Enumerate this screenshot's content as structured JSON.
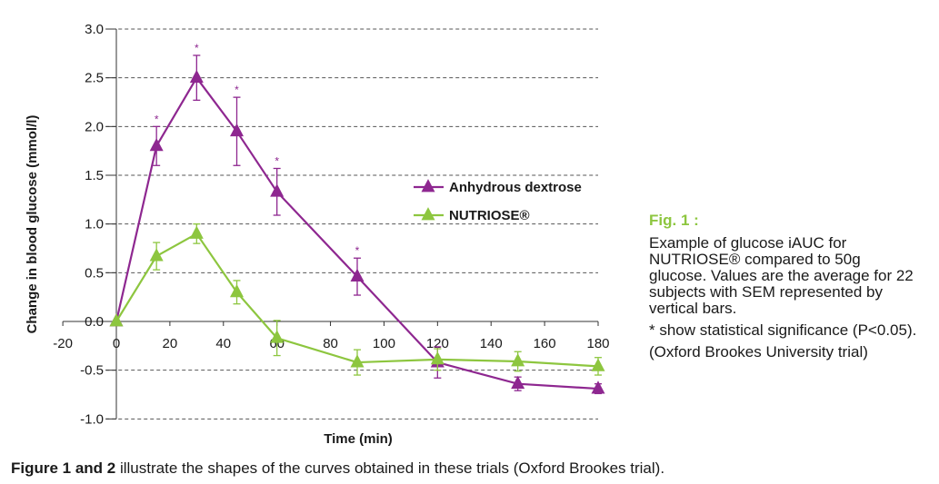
{
  "colors": {
    "dextrose": "#8e2790",
    "nutriose": "#8dc63f",
    "fig_title": "#8dc63f",
    "grid": "#555555"
  },
  "chart_data": {
    "type": "line",
    "xlabel": "Time (min)",
    "ylabel": "Change in blood glucose (mmol/l)",
    "xlim": [
      -20,
      180
    ],
    "ylim": [
      -1.0,
      3.0
    ],
    "x_ticks": [
      "-20",
      "0",
      "20",
      "40",
      "60",
      "80",
      "100",
      "120",
      "140",
      "160",
      "180"
    ],
    "y_ticks": [
      "3.0",
      "2.5",
      "2.0",
      "1.5",
      "1.0",
      "0.5",
      "0.0",
      "-0.5",
      "-1.0"
    ],
    "grid": true,
    "legend_position": "center-right",
    "series": [
      {
        "name": "Anhydrous dextrose",
        "color": "#8e2790",
        "marker": "triangle",
        "x": [
          0,
          15,
          30,
          45,
          60,
          90,
          120,
          150,
          180
        ],
        "y": [
          0.0,
          1.8,
          2.5,
          1.95,
          1.33,
          0.46,
          -0.42,
          -0.64,
          -0.69
        ],
        "err": [
          0,
          0.2,
          0.23,
          0.35,
          0.24,
          0.19,
          0.16,
          0.07,
          0.05
        ],
        "significance": [
          "",
          "*",
          "*",
          "*",
          "*",
          "*",
          "",
          "",
          ""
        ]
      },
      {
        "name": "NUTRIOSE®",
        "color": "#8dc63f",
        "marker": "triangle",
        "x": [
          0,
          15,
          30,
          45,
          60,
          90,
          120,
          150,
          180
        ],
        "y": [
          0.0,
          0.67,
          0.9,
          0.3,
          -0.17,
          -0.42,
          -0.39,
          -0.41,
          -0.46
        ],
        "err": [
          0,
          0.14,
          0.1,
          0.12,
          0.18,
          0.13,
          0.11,
          0.1,
          0.09
        ],
        "significance": [
          "",
          "",
          "",
          "",
          "",
          "",
          "",
          "",
          ""
        ]
      }
    ]
  },
  "side_panel": {
    "title": "Fig. 1 :",
    "description": "Example of glucose iAUC for NUTRIOSE® compared to 50g glucose. Values are the average for 22 subjects with SEM represented by vertical bars.",
    "significance_note": "* show statistical significance (P<0.05).",
    "source": "(Oxford Brookes University trial)"
  },
  "caption": {
    "bold": "Figure 1 and 2",
    "text": " illustrate the shapes of the curves obtained in these trials (Oxford Brookes trial)."
  }
}
